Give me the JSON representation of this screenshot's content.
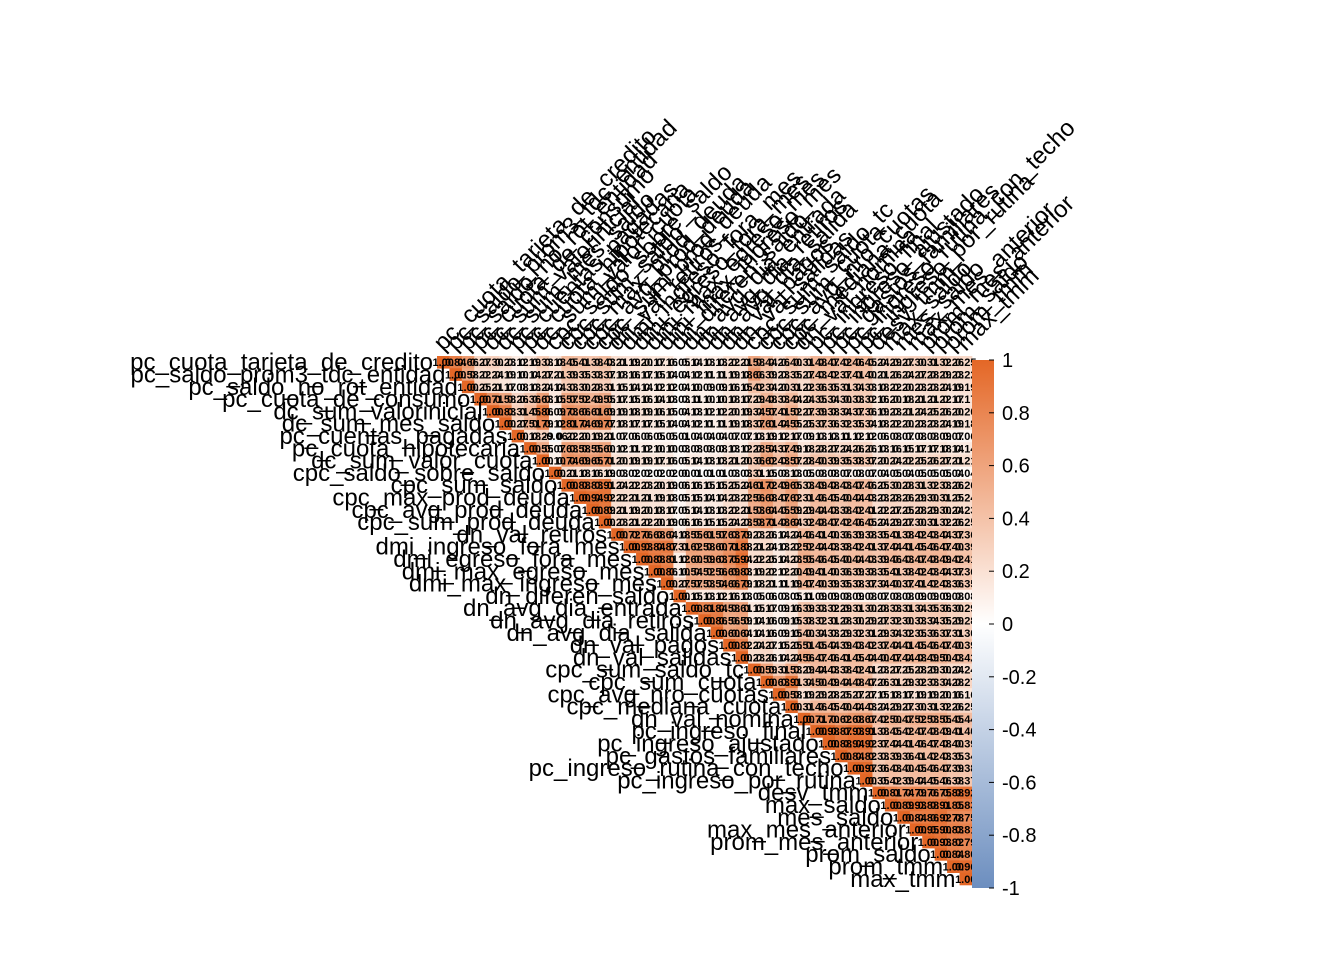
{
  "chart_data": {
    "type": "heatmap",
    "layout": "lower-triangular correlation matrix",
    "color_scale": {
      "min": -1,
      "max": 1,
      "low_color": "#6C8EBF",
      "mid_color": "#FFFFFF",
      "high_color": "#E46726"
    },
    "colorbar_ticks": [
      "1",
      "0.8",
      "0.6",
      "0.4",
      "0.2",
      "0",
      "-0.2",
      "-0.4",
      "-0.6",
      "-0.8",
      "-1"
    ],
    "variables": [
      "pc_cuota_tarjeta_de_credito",
      "pc_saldo_prom3_tdc_entidad",
      "pc_saldo_no_rot_entidad",
      "pc_cuota_de_consumo",
      "dc_sum_valorinicial",
      "dc_sum_mes_saldo",
      "pc_cuentas_pagadas",
      "pc_cuota_hipotecaria",
      "dc_sum_valor_cuota",
      "cpc_saldo_sobre_saldo",
      "cpc_sum_saldo",
      "cpc_max_prod_deuda",
      "cpc_avg_prod_deuda",
      "cpc_sum_prod_deuda",
      "dn_val_retiros",
      "dmi_ingreso_fora_mes",
      "dmi_egreso_fora_mes",
      "dmi_max_egreso_mes",
      "dmi_max_ingreso_mes",
      "dn_diferen_saldo",
      "dn_avg_dia_entrada",
      "dn_avg_dia_retiros",
      "dn_avg_dia_salida",
      "dn_val_pagos",
      "dn_val_salidas",
      "cpc_sum_saldo_tc",
      "cpc_sum_cuota",
      "cpc_avg_nro_cuotas",
      "cpc_mediana_cuota",
      "dn_val_nomina",
      "pc_ingreso_final",
      "pc_ingreso_ajustado",
      "pc_gastos_familiares",
      "pc_ingreso_rutina_con_techo",
      "pc_ingreso_por_rutina",
      "desv_tmm",
      "max_saldo",
      "mes_saldo",
      "max_mes_anterior",
      "prom_mes_anterior",
      "prom_saldo",
      "prom_tmm",
      "max_tmm"
    ],
    "values": [
      [
        1.0
      ],
      [
        0.84,
        1.0
      ],
      [
        0.66,
        0.58,
        1.0
      ],
      [
        0.27,
        0.22,
        0.25,
        1.0
      ],
      [
        0.3,
        0.24,
        0.21,
        0.71,
        1.0
      ],
      [
        0.23,
        0.19,
        0.17,
        0.58,
        0.83,
        1.0
      ],
      [
        0.12,
        0.1,
        0.08,
        0.26,
        0.31,
        0.27,
        1.0
      ],
      [
        0.19,
        0.14,
        0.13,
        0.36,
        0.45,
        0.51,
        0.18,
        1.0
      ],
      [
        0.33,
        0.27,
        0.24,
        0.63,
        0.86,
        0.79,
        0.29,
        0.55,
        1.0
      ],
      [
        0.18,
        0.21,
        0.14,
        0.15,
        0.09,
        0.12,
        -0.06,
        0.07,
        0.1,
        1.0
      ],
      [
        0.45,
        0.39,
        0.33,
        0.57,
        0.73,
        0.81,
        0.22,
        0.63,
        0.74,
        0.21,
        1.0
      ],
      [
        0.41,
        0.35,
        0.3,
        0.52,
        0.66,
        0.74,
        0.2,
        0.58,
        0.69,
        0.18,
        0.88,
        1.0
      ],
      [
        0.38,
        0.33,
        0.28,
        0.49,
        0.61,
        0.69,
        0.19,
        0.55,
        0.65,
        0.16,
        0.83,
        0.94,
        1.0
      ],
      [
        0.43,
        0.37,
        0.31,
        0.55,
        0.69,
        0.77,
        0.21,
        0.6,
        0.71,
        0.19,
        0.91,
        0.92,
        0.89,
        1.0
      ],
      [
        0.21,
        0.18,
        0.15,
        0.17,
        0.19,
        0.18,
        0.07,
        0.12,
        0.2,
        0.03,
        0.24,
        0.22,
        0.21,
        0.23,
        1.0
      ],
      [
        0.19,
        0.16,
        0.14,
        0.15,
        0.18,
        0.17,
        0.06,
        0.11,
        0.19,
        0.02,
        0.22,
        0.21,
        0.19,
        0.21,
        0.72,
        1.0
      ],
      [
        0.2,
        0.17,
        0.14,
        0.16,
        0.19,
        0.17,
        0.06,
        0.12,
        0.19,
        0.02,
        0.23,
        0.21,
        0.2,
        0.22,
        0.76,
        0.93,
        1.0
      ],
      [
        0.17,
        0.15,
        0.12,
        0.14,
        0.16,
        0.15,
        0.05,
        0.1,
        0.17,
        0.02,
        0.2,
        0.19,
        0.18,
        0.2,
        0.68,
        0.84,
        0.88,
        1.0
      ],
      [
        0.16,
        0.14,
        0.12,
        0.13,
        0.15,
        0.14,
        0.05,
        0.1,
        0.16,
        0.02,
        0.19,
        0.18,
        0.17,
        0.19,
        0.64,
        0.87,
        0.81,
        0.86,
        1.0
      ],
      [
        0.05,
        0.04,
        0.04,
        0.03,
        0.04,
        0.04,
        0.01,
        0.03,
        0.05,
        0.0,
        0.06,
        0.05,
        0.05,
        0.06,
        0.18,
        0.31,
        0.12,
        0.1,
        0.27,
        1.0
      ],
      [
        0.14,
        0.12,
        0.1,
        0.11,
        0.13,
        0.12,
        0.04,
        0.08,
        0.14,
        0.01,
        0.16,
        0.15,
        0.14,
        0.16,
        0.55,
        0.62,
        0.6,
        0.54,
        0.57,
        0.15,
        1.0
      ],
      [
        0.13,
        0.11,
        0.09,
        0.1,
        0.12,
        0.11,
        0.04,
        0.08,
        0.13,
        0.01,
        0.15,
        0.14,
        0.13,
        0.15,
        0.61,
        0.58,
        0.59,
        0.52,
        0.53,
        0.13,
        0.81,
        1.0
      ],
      [
        0.13,
        0.11,
        0.09,
        0.1,
        0.12,
        0.11,
        0.04,
        0.08,
        0.13,
        0.01,
        0.15,
        0.14,
        0.13,
        0.15,
        0.57,
        0.6,
        0.63,
        0.56,
        0.54,
        0.12,
        0.84,
        0.86,
        1.0
      ],
      [
        0.22,
        0.19,
        0.16,
        0.18,
        0.2,
        0.19,
        0.07,
        0.13,
        0.21,
        0.03,
        0.25,
        0.23,
        0.22,
        0.24,
        0.63,
        0.71,
        0.75,
        0.69,
        0.66,
        0.16,
        0.58,
        0.56,
        0.6,
        1.0
      ],
      [
        0.21,
        0.18,
        0.15,
        0.17,
        0.19,
        0.18,
        0.07,
        0.12,
        0.2,
        0.03,
        0.24,
        0.22,
        0.21,
        0.23,
        0.79,
        0.88,
        0.94,
        0.83,
        0.79,
        0.13,
        0.61,
        0.59,
        0.64,
        0.82,
        1.0
      ],
      [
        0.58,
        0.66,
        0.42,
        0.29,
        0.34,
        0.37,
        0.13,
        0.28,
        0.36,
        0.31,
        0.61,
        0.56,
        0.53,
        0.58,
        0.23,
        0.21,
        0.22,
        0.19,
        0.18,
        0.05,
        0.15,
        0.14,
        0.14,
        0.24,
        0.23,
        1.0
      ],
      [
        0.44,
        0.39,
        0.34,
        0.48,
        0.57,
        0.61,
        0.19,
        0.54,
        0.62,
        0.15,
        0.72,
        0.68,
        0.64,
        0.71,
        0.26,
        0.24,
        0.25,
        0.22,
        0.21,
        0.06,
        0.17,
        0.16,
        0.16,
        0.27,
        0.26,
        0.59,
        1.0
      ],
      [
        0.26,
        0.23,
        0.2,
        0.33,
        0.41,
        0.44,
        0.12,
        0.37,
        0.43,
        0.08,
        0.49,
        0.47,
        0.45,
        0.48,
        0.14,
        0.13,
        0.14,
        0.12,
        0.11,
        0.03,
        0.09,
        0.09,
        0.09,
        0.15,
        0.14,
        0.31,
        0.63,
        1.0
      ],
      [
        0.4,
        0.35,
        0.31,
        0.44,
        0.52,
        0.55,
        0.17,
        0.49,
        0.57,
        0.13,
        0.65,
        0.62,
        0.59,
        0.64,
        0.24,
        0.22,
        0.23,
        0.2,
        0.19,
        0.05,
        0.16,
        0.15,
        0.15,
        0.25,
        0.24,
        0.53,
        0.91,
        0.58,
        1.0
      ],
      [
        0.31,
        0.27,
        0.22,
        0.24,
        0.27,
        0.25,
        0.09,
        0.18,
        0.28,
        0.05,
        0.33,
        0.31,
        0.29,
        0.32,
        0.46,
        0.52,
        0.55,
        0.49,
        0.47,
        0.11,
        0.39,
        0.38,
        0.4,
        0.51,
        0.56,
        0.29,
        0.34,
        0.19,
        0.31,
        1.0
      ],
      [
        0.48,
        0.43,
        0.36,
        0.35,
        0.39,
        0.37,
        0.13,
        0.28,
        0.4,
        0.08,
        0.49,
        0.46,
        0.44,
        0.48,
        0.41,
        0.44,
        0.46,
        0.41,
        0.4,
        0.09,
        0.33,
        0.32,
        0.34,
        0.45,
        0.47,
        0.44,
        0.5,
        0.29,
        0.46,
        0.71,
        1.0
      ],
      [
        0.47,
        0.42,
        0.35,
        0.34,
        0.38,
        0.36,
        0.13,
        0.27,
        0.39,
        0.08,
        0.48,
        0.45,
        0.43,
        0.47,
        0.4,
        0.43,
        0.45,
        0.4,
        0.39,
        0.09,
        0.32,
        0.31,
        0.33,
        0.44,
        0.46,
        0.43,
        0.49,
        0.28,
        0.45,
        0.7,
        0.98,
        1.0
      ],
      [
        0.42,
        0.37,
        0.31,
        0.3,
        0.34,
        0.32,
        0.11,
        0.24,
        0.35,
        0.07,
        0.43,
        0.4,
        0.38,
        0.42,
        0.36,
        0.38,
        0.4,
        0.36,
        0.35,
        0.08,
        0.29,
        0.28,
        0.29,
        0.39,
        0.41,
        0.38,
        0.44,
        0.25,
        0.4,
        0.62,
        0.87,
        0.88,
        1.0
      ],
      [
        0.46,
        0.41,
        0.34,
        0.33,
        0.37,
        0.35,
        0.12,
        0.26,
        0.38,
        0.08,
        0.47,
        0.44,
        0.42,
        0.46,
        0.39,
        0.42,
        0.44,
        0.39,
        0.38,
        0.09,
        0.31,
        0.3,
        0.32,
        0.43,
        0.45,
        0.42,
        0.48,
        0.27,
        0.44,
        0.68,
        0.93,
        0.94,
        0.84,
        1.0
      ],
      [
        0.45,
        0.4,
        0.33,
        0.32,
        0.36,
        0.34,
        0.12,
        0.26,
        0.37,
        0.07,
        0.46,
        0.43,
        0.41,
        0.45,
        0.38,
        0.41,
        0.43,
        0.38,
        0.37,
        0.08,
        0.3,
        0.29,
        0.31,
        0.42,
        0.44,
        0.41,
        0.47,
        0.27,
        0.43,
        0.67,
        0.91,
        0.92,
        0.82,
        0.97,
        1.0
      ],
      [
        0.24,
        0.21,
        0.18,
        0.16,
        0.19,
        0.18,
        0.06,
        0.13,
        0.2,
        0.04,
        0.25,
        0.23,
        0.22,
        0.24,
        0.35,
        0.37,
        0.39,
        0.35,
        0.34,
        0.07,
        0.28,
        0.27,
        0.29,
        0.37,
        0.4,
        0.23,
        0.26,
        0.15,
        0.24,
        0.42,
        0.38,
        0.37,
        0.33,
        0.36,
        0.35,
        1.0
      ],
      [
        0.29,
        0.26,
        0.22,
        0.2,
        0.23,
        0.22,
        0.08,
        0.16,
        0.24,
        0.05,
        0.3,
        0.28,
        0.27,
        0.29,
        0.41,
        0.44,
        0.46,
        0.41,
        0.4,
        0.08,
        0.33,
        0.32,
        0.34,
        0.44,
        0.47,
        0.27,
        0.31,
        0.18,
        0.29,
        0.5,
        0.45,
        0.44,
        0.39,
        0.43,
        0.42,
        0.81,
        1.0
      ],
      [
        0.27,
        0.24,
        0.2,
        0.18,
        0.21,
        0.2,
        0.07,
        0.15,
        0.22,
        0.04,
        0.28,
        0.26,
        0.25,
        0.27,
        0.38,
        0.41,
        0.43,
        0.38,
        0.37,
        0.08,
        0.31,
        0.3,
        0.32,
        0.41,
        0.44,
        0.25,
        0.29,
        0.17,
        0.27,
        0.47,
        0.42,
        0.41,
        0.36,
        0.4,
        0.39,
        0.74,
        0.89,
        1.0
      ],
      [
        0.3,
        0.27,
        0.23,
        0.21,
        0.24,
        0.23,
        0.08,
        0.17,
        0.25,
        0.05,
        0.31,
        0.29,
        0.28,
        0.3,
        0.42,
        0.45,
        0.47,
        0.42,
        0.41,
        0.09,
        0.34,
        0.33,
        0.35,
        0.45,
        0.48,
        0.28,
        0.32,
        0.19,
        0.3,
        0.52,
        0.47,
        0.46,
        0.41,
        0.45,
        0.44,
        0.79,
        0.93,
        0.84,
        1.0
      ],
      [
        0.31,
        0.28,
        0.23,
        0.21,
        0.25,
        0.23,
        0.08,
        0.17,
        0.26,
        0.05,
        0.32,
        0.3,
        0.29,
        0.31,
        0.43,
        0.46,
        0.48,
        0.43,
        0.42,
        0.09,
        0.35,
        0.34,
        0.36,
        0.46,
        0.49,
        0.29,
        0.33,
        0.19,
        0.31,
        0.53,
        0.48,
        0.47,
        0.42,
        0.46,
        0.45,
        0.76,
        0.88,
        0.86,
        0.95,
        1.0
      ],
      [
        0.32,
        0.29,
        0.24,
        0.22,
        0.26,
        0.24,
        0.09,
        0.18,
        0.27,
        0.05,
        0.33,
        0.31,
        0.3,
        0.32,
        0.44,
        0.47,
        0.49,
        0.44,
        0.43,
        0.09,
        0.36,
        0.35,
        0.37,
        0.47,
        0.5,
        0.3,
        0.34,
        0.2,
        0.32,
        0.55,
        0.49,
        0.48,
        0.43,
        0.47,
        0.46,
        0.75,
        0.91,
        0.92,
        0.9,
        0.93,
        1.0
      ],
      [
        0.26,
        0.23,
        0.19,
        0.17,
        0.2,
        0.19,
        0.07,
        0.14,
        0.21,
        0.04,
        0.26,
        0.25,
        0.24,
        0.26,
        0.37,
        0.4,
        0.42,
        0.37,
        0.36,
        0.08,
        0.3,
        0.29,
        0.31,
        0.4,
        0.43,
        0.24,
        0.28,
        0.16,
        0.26,
        0.45,
        0.41,
        0.4,
        0.35,
        0.39,
        0.38,
        0.88,
        0.85,
        0.78,
        0.83,
        0.82,
        0.84,
        1.0
      ],
      [
        0.25,
        0.22,
        0.19,
        0.17,
        0.2,
        0.18,
        0.06,
        0.14,
        0.21,
        0.04,
        0.26,
        0.24,
        0.23,
        0.25,
        0.36,
        0.39,
        0.41,
        0.36,
        0.35,
        0.08,
        0.29,
        0.28,
        0.3,
        0.39,
        0.42,
        0.24,
        0.27,
        0.16,
        0.25,
        0.44,
        0.4,
        0.39,
        0.34,
        0.38,
        0.37,
        0.92,
        0.83,
        0.75,
        0.81,
        0.79,
        0.8,
        0.96,
        1.0
      ]
    ],
    "cell_labels": "rounded correlation coefficient printed in each cell"
  }
}
